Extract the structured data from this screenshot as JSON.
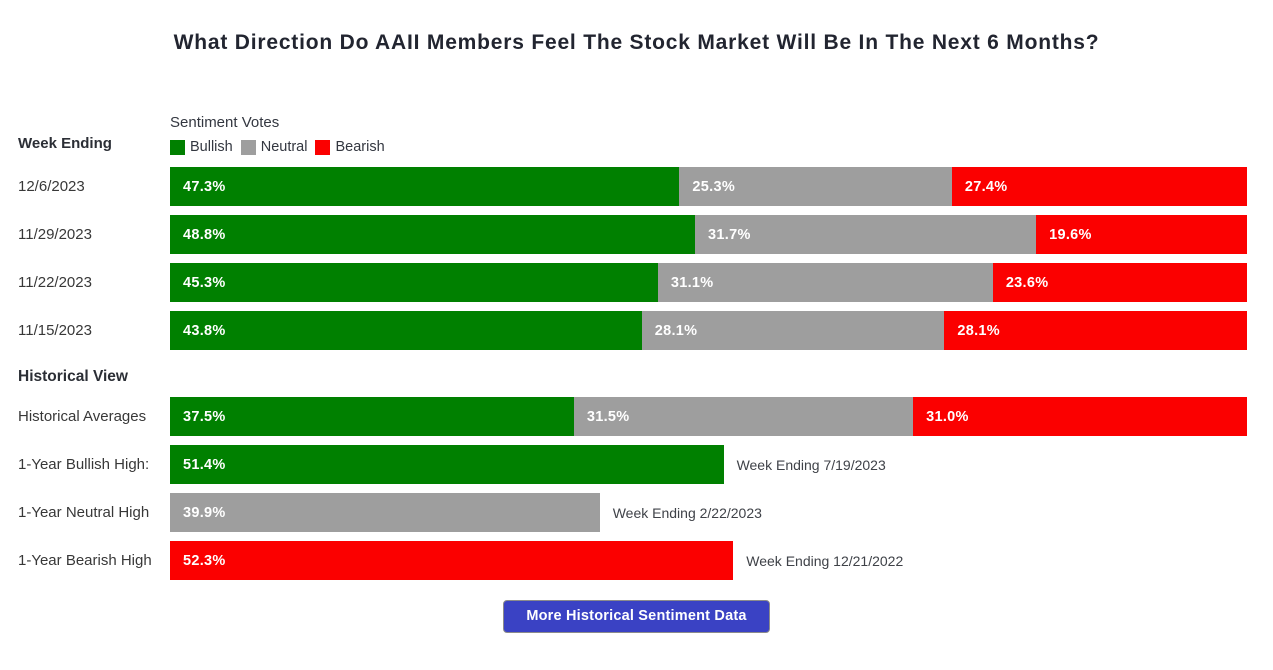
{
  "page": {
    "title": "What Direction Do AAII Members Feel The Stock Market Will Be In The Next 6 Months?"
  },
  "labels": {
    "week_ending": "Week Ending",
    "historical_view": "Historical View",
    "legend_title": "Sentiment Votes"
  },
  "legend_items": [
    {
      "label": "Bullish",
      "key": "bullish"
    },
    {
      "label": "Neutral",
      "key": "neutral"
    },
    {
      "label": "Bearish",
      "key": "bearish"
    }
  ],
  "colors": {
    "bullish": "#008000",
    "neutral": "#9e9e9e",
    "bearish": "#fb0000",
    "button": "#3a42c4"
  },
  "button": {
    "label": "More Historical Sentiment Data"
  },
  "chart_data": {
    "type": "bar",
    "orientation": "horizontal-stacked",
    "title": "What Direction Do AAII Members Feel The Stock Market Will Be In The Next 6 Months?",
    "legend_title": "Sentiment Votes",
    "series_names": [
      "Bullish",
      "Neutral",
      "Bearish"
    ],
    "xlim": [
      0,
      100
    ],
    "value_suffix": "%",
    "weekly": [
      {
        "week_ending": "12/6/2023",
        "bullish": 47.3,
        "neutral": 25.3,
        "bearish": 27.4
      },
      {
        "week_ending": "11/29/2023",
        "bullish": 48.8,
        "neutral": 31.7,
        "bearish": 19.6
      },
      {
        "week_ending": "11/22/2023",
        "bullish": 45.3,
        "neutral": 31.1,
        "bearish": 23.6
      },
      {
        "week_ending": "11/15/2023",
        "bullish": 43.8,
        "neutral": 28.1,
        "bearish": 28.1
      }
    ],
    "historical_averages": {
      "label": "Historical Averages",
      "bullish": 37.5,
      "neutral": 31.5,
      "bearish": 31.0
    },
    "one_year_highs": [
      {
        "label": "1-Year Bullish High:",
        "key": "bullish",
        "value": 51.4,
        "annotation": "Week Ending 7/19/2023"
      },
      {
        "label": "1-Year Neutral High",
        "key": "neutral",
        "value": 39.9,
        "annotation": "Week Ending 2/22/2023"
      },
      {
        "label": "1-Year Bearish High",
        "key": "bearish",
        "value": 52.3,
        "annotation": "Week Ending 12/21/2022"
      }
    ]
  }
}
